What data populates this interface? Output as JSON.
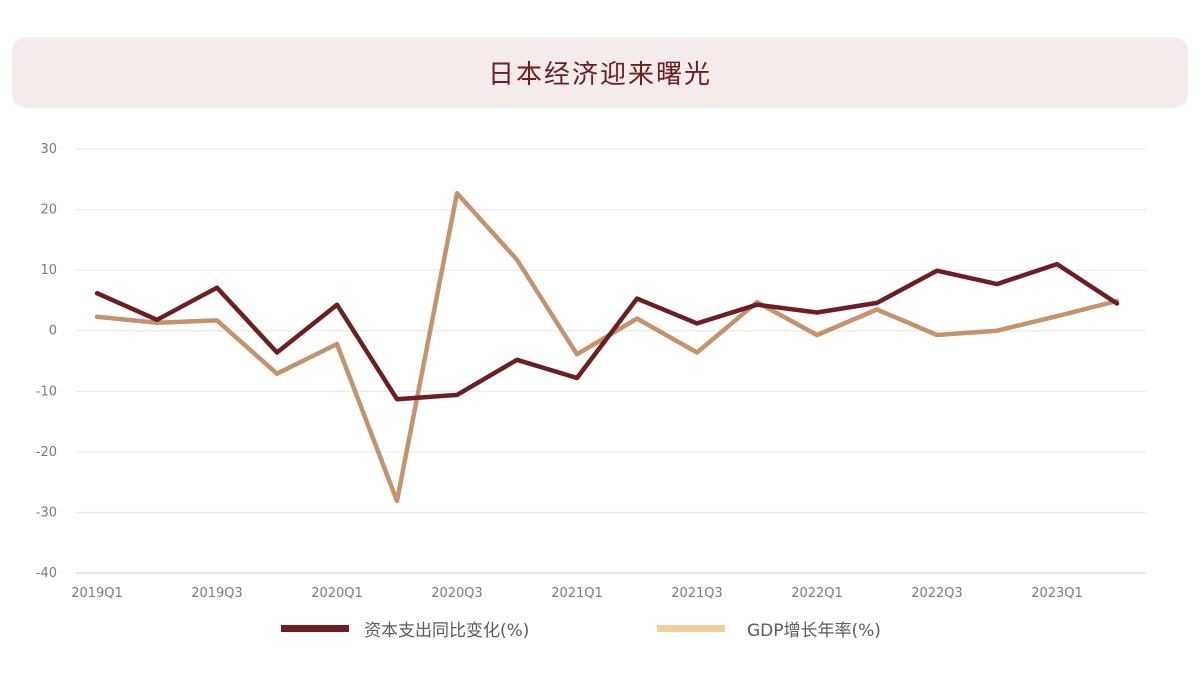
{
  "header": {
    "title": "日本经济迎来曙光"
  },
  "chart_data": {
    "type": "line",
    "title": "日本经济迎来曙光",
    "xlabel": "",
    "ylabel": "",
    "ylim": [
      -40,
      30
    ],
    "yticks": [
      "30",
      "20",
      "10",
      "0",
      "-10",
      "-20",
      "-30",
      "-40"
    ],
    "ytick_values": [
      30,
      20,
      10,
      0,
      -10,
      -20,
      -30,
      -40
    ],
    "x": [
      "2019Q1",
      "2019Q2",
      "2019Q3",
      "2019Q4",
      "2020Q1",
      "2020Q2",
      "2020Q3",
      "2020Q4",
      "2021Q1",
      "2021Q2",
      "2021Q3",
      "2021Q4",
      "2022Q1",
      "2022Q2",
      "2022Q3",
      "2022Q4",
      "2023Q1",
      "2023Q2"
    ],
    "x_tick_labels": [
      "2019Q1",
      "2019Q3",
      "2020Q1",
      "2020Q3",
      "2021Q1",
      "2021Q3",
      "2022Q1",
      "2022Q3",
      "2023Q1"
    ],
    "grid": true,
    "legend_position": "bottom",
    "series": [
      {
        "name": "资本支出同比变化(%)",
        "color": "#6e1d22",
        "values": [
          6.2,
          1.8,
          7.1,
          -3.6,
          4.3,
          -11.3,
          -10.6,
          -4.8,
          -7.8,
          5.3,
          1.2,
          4.3,
          3.0,
          4.6,
          9.9,
          7.7,
          11.0,
          4.5
        ]
      },
      {
        "name": "GDP增长年率(%)",
        "color": "#c4936a",
        "legend_color": "#efd29a",
        "values": [
          2.3,
          1.3,
          1.7,
          -7.1,
          -2.2,
          -28.1,
          22.7,
          11.7,
          -3.9,
          2.0,
          -3.6,
          4.7,
          -0.7,
          3.5,
          -0.7,
          0.0,
          2.4,
          4.9
        ]
      }
    ]
  }
}
